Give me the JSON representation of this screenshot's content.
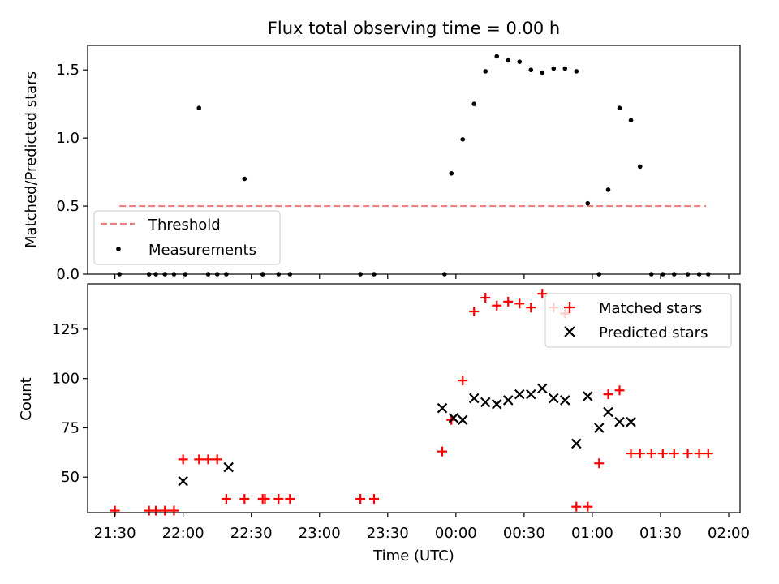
{
  "chart_data": [
    {
      "type": "scatter",
      "title": "Flux total observing time = 0.00 h",
      "xlabel": "",
      "ylabel": "Matched/Predicted stars",
      "ylim": [
        0,
        1.68
      ],
      "yticks": [
        0.0,
        0.5,
        1.0,
        1.5
      ],
      "ytick_labels": [
        "0.0",
        "0.5",
        "1.0",
        "1.5"
      ],
      "xlim": [
        1278,
        1565
      ],
      "legend": {
        "placement": "lower-left",
        "entries": [
          "Threshold",
          "Measurements"
        ]
      },
      "threshold": {
        "name": "Threshold",
        "color": "#f08080",
        "x": [
          1292,
          1550
        ],
        "y": [
          0.5,
          0.5
        ]
      },
      "series": [
        {
          "name": "Measurements",
          "color": "#000000",
          "x": [
            1292,
            1305,
            1308,
            1312,
            1316,
            1321,
            1327,
            1331,
            1335,
            1339,
            1347,
            1355,
            1362,
            1367,
            1398,
            1435,
            1438,
            1443,
            1448,
            1453,
            1458,
            1463,
            1468,
            1473,
            1478,
            1483,
            1488,
            1493,
            1498,
            1503,
            1507,
            1512,
            1517,
            1521,
            1526,
            1531,
            1536,
            1542,
            1547,
            1551,
            1355,
            1404
          ],
          "y": [
            0.0,
            0.0,
            0.0,
            0.0,
            0.0,
            0.0,
            1.22,
            0.0,
            0.0,
            0.0,
            0.7,
            0.0,
            0.0,
            0.0,
            0.0,
            0.0,
            0.74,
            0.99,
            1.25,
            1.49,
            1.6,
            1.57,
            1.56,
            1.5,
            1.48,
            1.51,
            1.51,
            1.49,
            0.52,
            0.0,
            0.62,
            1.22,
            1.13,
            0.79,
            0.0,
            0.0,
            0.0,
            0.0,
            0.0,
            0.0,
            0.0,
            0.0
          ]
        }
      ]
    },
    {
      "type": "scatter",
      "title": "",
      "xlabel": "Time (UTC)",
      "ylabel": "Count",
      "ylim": [
        32,
        148
      ],
      "yticks": [
        50,
        75,
        100,
        125
      ],
      "ytick_labels": [
        "50",
        "75",
        "100",
        "125"
      ],
      "xlim": [
        1278,
        1565
      ],
      "xticks": [
        1290,
        1320,
        1350,
        1380,
        1410,
        1440,
        1470,
        1500,
        1530,
        1560
      ],
      "xtick_labels": [
        "21:30",
        "22:00",
        "22:30",
        "23:00",
        "23:30",
        "00:00",
        "00:30",
        "01:00",
        "01:30",
        "02:00"
      ],
      "legend": {
        "placement": "top-right",
        "entries": [
          "Matched stars",
          "Predicted stars"
        ]
      },
      "series": [
        {
          "name": "Matched stars",
          "marker": "plus",
          "color": "#ff0000",
          "x": [
            1290,
            1305,
            1308,
            1312,
            1316,
            1320,
            1327,
            1331,
            1335,
            1339,
            1347,
            1355,
            1362,
            1367,
            1398,
            1434,
            1438,
            1443,
            1448,
            1453,
            1458,
            1463,
            1468,
            1473,
            1478,
            1483,
            1488,
            1493,
            1498,
            1503,
            1507,
            1512,
            1517,
            1521,
            1526,
            1531,
            1536,
            1542,
            1547,
            1551,
            1356,
            1404
          ],
          "y": [
            33,
            33,
            33,
            33,
            33,
            59,
            59,
            59,
            59,
            39,
            39,
            39,
            39,
            39,
            39,
            63,
            79,
            99,
            134,
            141,
            137,
            139,
            138,
            136,
            143,
            136,
            133,
            35,
            35,
            57,
            92,
            94,
            62,
            62,
            62,
            62,
            62,
            62,
            62,
            62,
            39,
            39
          ]
        },
        {
          "name": "Predicted stars",
          "marker": "x",
          "color": "#000000",
          "x": [
            1320,
            1340,
            1434,
            1439,
            1443,
            1448,
            1453,
            1458,
            1463,
            1468,
            1473,
            1478,
            1483,
            1488,
            1493,
            1498,
            1503,
            1507,
            1512,
            1517
          ],
          "y": [
            48,
            55,
            85,
            80,
            79,
            90,
            88,
            87,
            89,
            92,
            92,
            95,
            90,
            89,
            67,
            91,
            75,
            83,
            78,
            78
          ]
        }
      ]
    }
  ]
}
